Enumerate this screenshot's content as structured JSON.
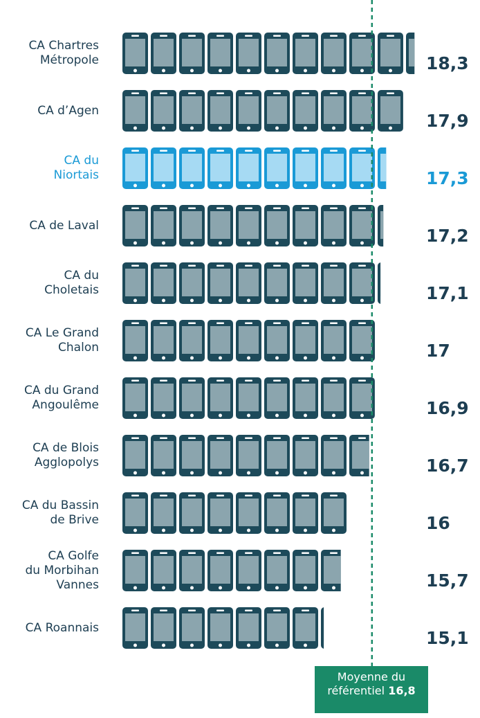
{
  "chart_data": {
    "type": "pictogram-bar",
    "categories": [
      "CA Chartres\nMétropole",
      "CA d’Agen",
      "CA du\nNiortais",
      "CA de Laval",
      "CA du\nCholetais",
      "CA Le Grand\nChalon",
      "CA du Grand\nAngoulême",
      "CA de Blois\nAgglopolys",
      "CA du Bassin\nde Brive",
      "CA Golfe\ndu Morbihan\nVannes",
      "CA Roannais"
    ],
    "values": [
      18.3,
      17.9,
      17.3,
      17.2,
      17.1,
      17,
      16.9,
      16.7,
      16,
      15.7,
      15.1
    ],
    "value_labels": [
      "18,3",
      "17,9",
      "17,3",
      "17,2",
      "17,1",
      "17",
      "16,9",
      "16,7",
      "16",
      "15,7",
      "15,1"
    ],
    "color": "#1d4a5a",
    "highlight_index": 2,
    "highlight_color": "#1a9ad6",
    "xlim": [
      8,
      19
    ],
    "mean": 16.8,
    "mean_label": "Moyenne du\nréférentiel",
    "mean_value_label": "16,8",
    "mean_color": "#1a8a68"
  }
}
